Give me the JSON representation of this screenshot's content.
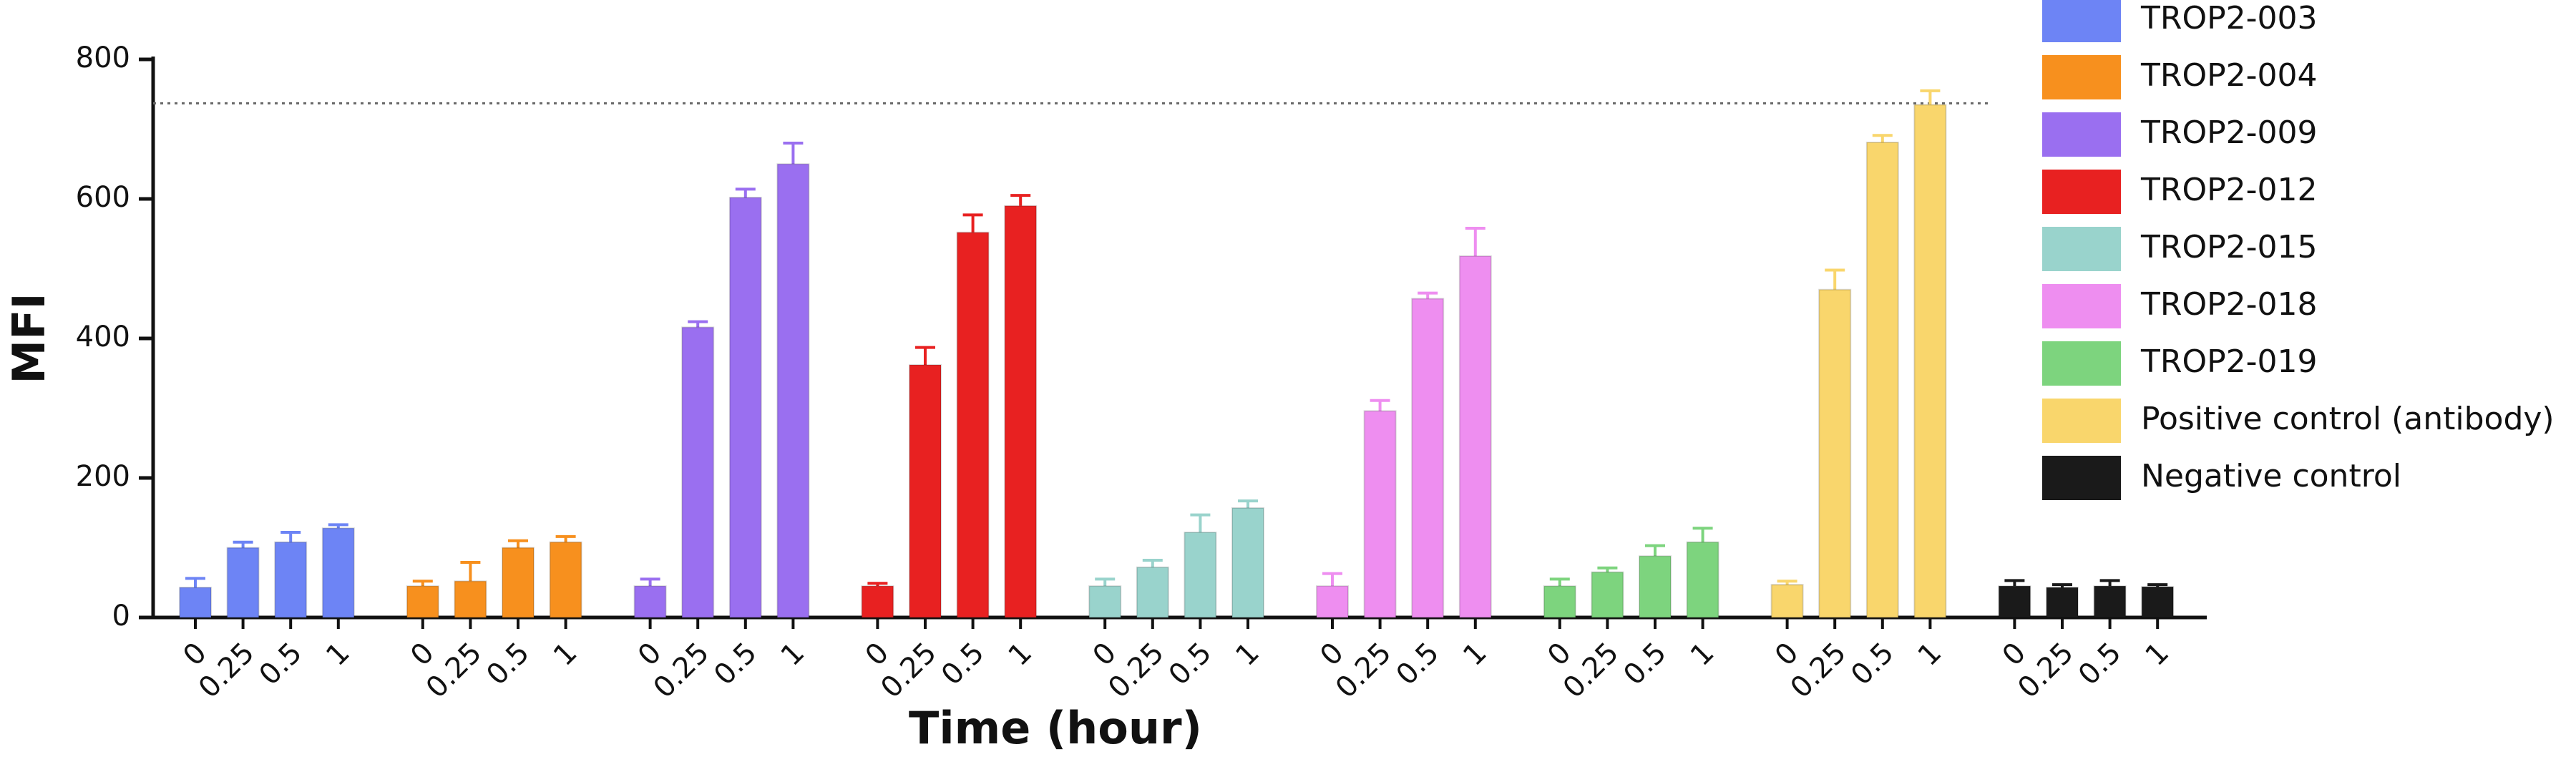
{
  "chart_data": {
    "type": "bar",
    "error_bars": true,
    "ylabel": "MFI",
    "xlabel": "Time (hour)",
    "categories": [
      "0",
      "0.25",
      "0.5",
      "1"
    ],
    "ylim": [
      0,
      800
    ],
    "yticks": [
      0,
      200,
      400,
      600,
      800
    ],
    "reference_line": 737,
    "legend": "right",
    "series": [
      {
        "name": "TROP2-003",
        "color": "#6d84f5",
        "values": [
          43,
          100,
          108,
          128
        ],
        "errors": [
          13,
          8,
          14,
          5
        ]
      },
      {
        "name": "TROP2-004",
        "color": "#f7901e",
        "values": [
          45,
          52,
          100,
          108
        ],
        "errors": [
          7,
          27,
          10,
          8
        ]
      },
      {
        "name": "TROP2-009",
        "color": "#9a6ff0",
        "values": [
          45,
          416,
          602,
          650
        ],
        "errors": [
          10,
          8,
          12,
          30
        ]
      },
      {
        "name": "TROP2-012",
        "color": "#e82121",
        "values": [
          45,
          362,
          552,
          590
        ],
        "errors": [
          4,
          25,
          25,
          15
        ]
      },
      {
        "name": "TROP2-015",
        "color": "#99d3cc",
        "values": [
          45,
          72,
          122,
          157
        ],
        "errors": [
          10,
          10,
          25,
          10
        ]
      },
      {
        "name": "TROP2-018",
        "color": "#ee8ef0",
        "values": [
          45,
          296,
          457,
          518
        ],
        "errors": [
          18,
          15,
          8,
          40
        ]
      },
      {
        "name": "TROP2-019",
        "color": "#7dd47e",
        "values": [
          45,
          65,
          88,
          108
        ],
        "errors": [
          10,
          6,
          15,
          20
        ]
      },
      {
        "name": "Positive control (antibody)",
        "color": "#f9d66c",
        "values": [
          47,
          470,
          681,
          735
        ],
        "errors": [
          5,
          28,
          10,
          20
        ]
      },
      {
        "name": "Negative control",
        "color": "#1a1a1a",
        "values": [
          45,
          43,
          45,
          44
        ],
        "errors": [
          8,
          4,
          8,
          3
        ]
      }
    ]
  }
}
